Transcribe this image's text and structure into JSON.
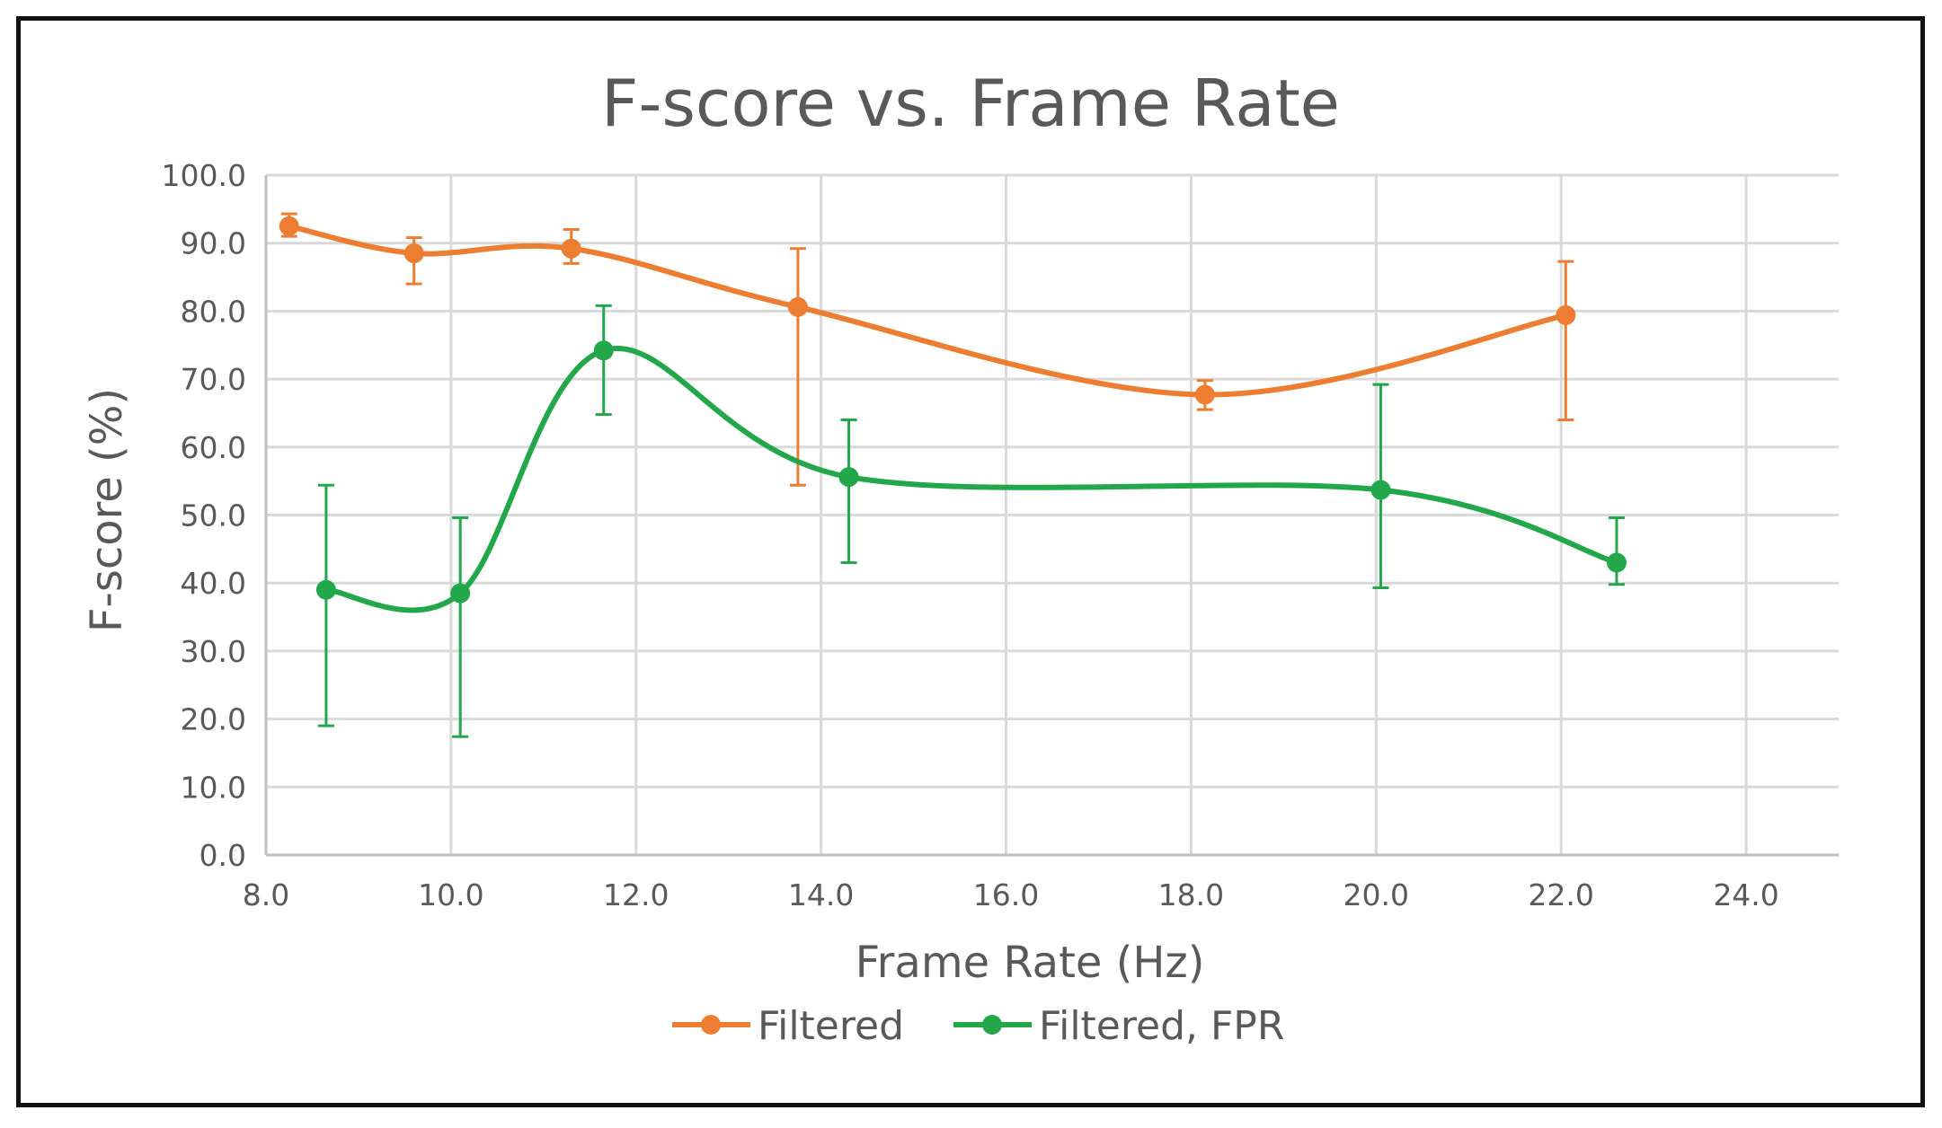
{
  "chart_data": {
    "type": "line",
    "title": "F-score vs. Frame Rate",
    "xlabel": "Frame Rate (Hz)",
    "ylabel": "F-score (%)",
    "xlim": [
      8.0,
      25.0
    ],
    "ylim": [
      0.0,
      100.0
    ],
    "x_ticks": [
      "8.0",
      "10.0",
      "12.0",
      "14.0",
      "16.0",
      "18.0",
      "20.0",
      "22.0",
      "24.0"
    ],
    "y_ticks": [
      "0.0",
      "10.0",
      "20.0",
      "30.0",
      "40.0",
      "50.0",
      "60.0",
      "70.0",
      "80.0",
      "90.0",
      "100.0"
    ],
    "grid": true,
    "smooth": true,
    "legend_position": "bottom",
    "series": [
      {
        "name": "Filtered",
        "color": "#ed7d31",
        "x": [
          8.25,
          9.6,
          11.3,
          13.75,
          18.15,
          22.05
        ],
        "y": [
          92.5,
          88.5,
          89.2,
          80.6,
          67.7,
          79.4
        ],
        "err_low": [
          91.0,
          84.0,
          87.0,
          54.4,
          65.5,
          64.0
        ],
        "err_high": [
          94.3,
          90.8,
          92.0,
          89.2,
          69.8,
          87.3
        ]
      },
      {
        "name": "Filtered, FPR",
        "color": "#22a84a",
        "x": [
          8.65,
          10.1,
          11.65,
          14.3,
          20.05,
          22.6
        ],
        "y": [
          39.0,
          38.5,
          74.2,
          55.6,
          53.7,
          43.0
        ],
        "err_low": [
          19.0,
          17.4,
          64.8,
          43.0,
          39.3,
          39.8
        ],
        "err_high": [
          54.4,
          49.6,
          80.8,
          64.0,
          69.2,
          49.6
        ]
      }
    ]
  }
}
